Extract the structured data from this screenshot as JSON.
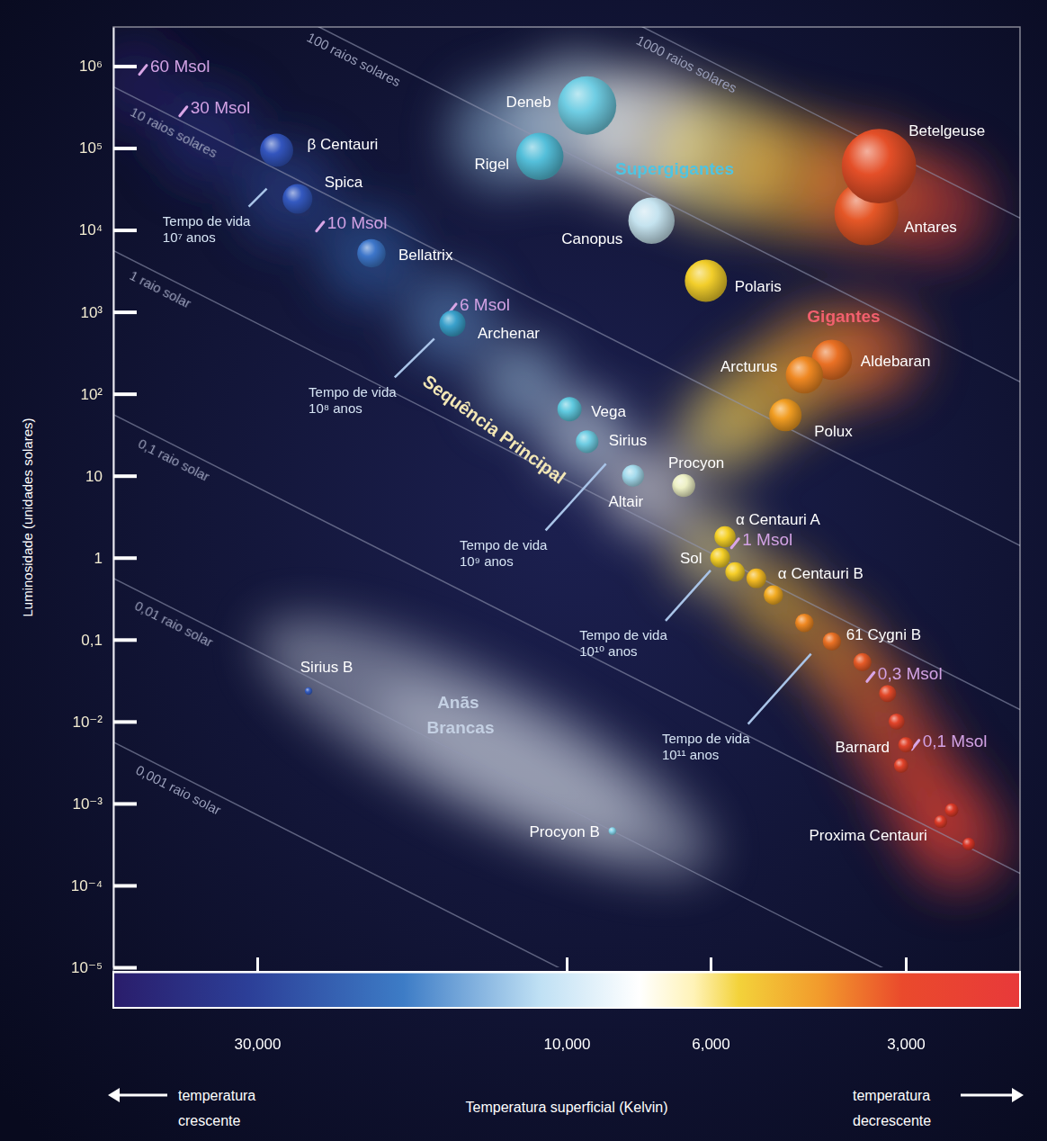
{
  "chart_data": {
    "type": "scatter",
    "log": true,
    "grid": false,
    "x_label": "Temperatura superficial (Kelvin)",
    "y_label": "Luminosidade (unidades solares)",
    "xlim": [
      50000,
      2000
    ],
    "ylim": [
      1e-05,
      3000000
    ],
    "xticks": [
      {
        "value": 30000,
        "label": "30,000"
      },
      {
        "value": 10000,
        "label": "10,000"
      },
      {
        "value": 6000,
        "label": "6,000"
      },
      {
        "value": 3000,
        "label": "3,000"
      }
    ],
    "yticks": [
      {
        "value": 1000000,
        "label": "10⁶"
      },
      {
        "value": 100000,
        "label": "10⁵"
      },
      {
        "value": 10000,
        "label": "10⁴"
      },
      {
        "value": 1000,
        "label": "10³"
      },
      {
        "value": 100,
        "label": "10²"
      },
      10,
      1,
      {
        "value": 0.1,
        "label": "0,1"
      },
      {
        "value": 0.01,
        "label": "10⁻²"
      },
      {
        "value": 0.001,
        "label": "10⁻³"
      },
      {
        "value": 0.0001,
        "label": "10⁻⁴"
      },
      {
        "value": 1e-05,
        "label": "10⁻⁵"
      }
    ],
    "x": [
      9300,
      11000,
      7400,
      3450,
      3300,
      6100,
      3900,
      4300,
      4600,
      28000,
      26000,
      20000,
      15000,
      9900,
      9300,
      7900,
      6600,
      5700,
      5800,
      5500,
      5100,
      4800,
      4300,
      3900,
      3500,
      3200,
      3100,
      3000,
      3050,
      2550,
      2650,
      2400,
      25000,
      8500
    ],
    "values": [
      330000,
      79000,
      13000,
      16000,
      60000,
      2400,
      260,
      170,
      55,
      94000,
      24000,
      5200,
      720,
      65,
      26,
      10,
      7.6,
      1.8,
      1,
      0.67,
      0.56,
      0.35,
      0.16,
      0.095,
      0.053,
      0.022,
      0.01,
      0.0052,
      0.0029,
      0.00083,
      0.0006,
      0.00032,
      0.0235,
      0.00046
    ],
    "labels": [
      "Deneb",
      "Rigel",
      "Canopus",
      "Antares",
      "Betelgeuse",
      "Polaris",
      "Aldebaran",
      "Arcturus",
      "Polux",
      "β Centauri",
      "Spica",
      "Bellatrix",
      "Archenar",
      "Vega",
      "Sirius",
      "Altair",
      "Procyon",
      "α Centauri A",
      "Sol",
      null,
      "α Centauri B",
      null,
      null,
      "61 Cygni B",
      null,
      null,
      null,
      "Barnard",
      null,
      null,
      "Proxima Centauri",
      null,
      "Sirius B",
      "Procyon B"
    ],
    "region_labels": [
      "Supergigantes",
      "Gigantes",
      "Sequência Principal",
      "Anãs Brancas"
    ],
    "radius_lines": [
      {
        "label": "1000 raios solares",
        "x": [
          50000,
          2000
        ],
        "values": [
          5600000000,
          14000
        ]
      },
      {
        "label": "100 raios solares",
        "x": [
          50000,
          2000
        ],
        "values": [
          56000000,
          140
        ]
      },
      {
        "label": "10 raios solares",
        "x": [
          50000,
          2000
        ],
        "values": [
          560000,
          1.4
        ]
      },
      {
        "label": "1 raio solar",
        "x": [
          50000,
          2000
        ],
        "values": [
          5600,
          0.014
        ]
      },
      {
        "label": "0,1 raio solar",
        "x": [
          50000,
          2000
        ],
        "values": [
          56,
          0.00014
        ]
      },
      {
        "label": "0,01 raio solar",
        "x": [
          50000,
          2000
        ],
        "values": [
          0.56,
          1.4e-06
        ]
      },
      {
        "label": "0,001 raio solar",
        "x": [
          50000,
          2000
        ],
        "values": [
          0.0056,
          1.4e-08
        ]
      }
    ],
    "mass_markers": {
      "labels": [
        "60 Msol",
        "30 Msol",
        "10 Msol",
        "6 Msol",
        "1 Msol",
        "0,3 Msol",
        "0,1 Msol"
      ],
      "x": [
        45000,
        39000,
        24000,
        15000,
        5500,
        3400,
        2900
      ],
      "values": [
        900000,
        280000,
        11000,
        1100,
        1.5,
        0.035,
        0.0052
      ]
    },
    "lifetimes": {
      "labels": [
        "Tempo de vida 10⁷ anos",
        "Tempo de vida 10⁸ anos",
        "Tempo de vida 10⁹ anos",
        "Tempo de vida 10¹⁰ anos",
        "Tempo de vida 10¹¹ anos"
      ],
      "x": [
        29000,
        16000,
        8700,
        6000,
        4200
      ],
      "values": [
        32000,
        470,
        14,
        0.7,
        0.067
      ]
    },
    "direction_labels": [
      "temperatura crescente",
      "temperatura decrescente"
    ]
  }
}
